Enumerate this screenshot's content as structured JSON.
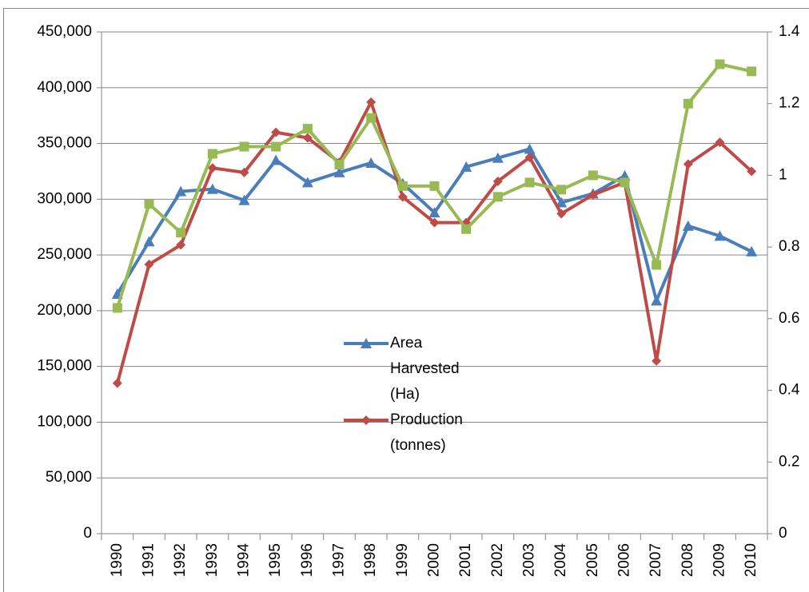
{
  "chart_data": {
    "type": "line",
    "categories": [
      "1990",
      "1991",
      "1992",
      "1993",
      "1994",
      "1995",
      "1996",
      "1997",
      "1998",
      "1999",
      "2000",
      "2001",
      "2002",
      "2003",
      "2004",
      "2005",
      "2006",
      "2007",
      "2008",
      "2009",
      "2010"
    ],
    "series": [
      {
        "name": "Area Harvested (Ha)",
        "color": "#4a7ebb",
        "marker": "triangle",
        "values": [
          215000,
          262000,
          307000,
          309000,
          299000,
          335000,
          315000,
          324000,
          332500,
          314000,
          288000,
          329000,
          337000,
          345000,
          297000,
          305000,
          321000,
          209000,
          276000,
          267000,
          253000
        ]
      },
      {
        "name": "Production (tonnes)",
        "color": "#be4b48",
        "marker": "diamond",
        "values": [
          135000,
          241500,
          259000,
          328000,
          324000,
          360000,
          355000,
          333000,
          387000,
          302000,
          279000,
          279000,
          316000,
          337500,
          287000,
          304000,
          315000,
          155000,
          331500,
          351000,
          325000
        ]
      },
      {
        "color": "#98b954",
        "marker": "square",
        "axis": "y2",
        "values": [
          0.63,
          0.92,
          0.84,
          1.06,
          1.08,
          1.08,
          1.13,
          1.03,
          1.16,
          0.97,
          0.97,
          0.85,
          0.94,
          0.98,
          0.96,
          1.0,
          0.98,
          0.75,
          1.2,
          1.31,
          1.29
        ]
      }
    ],
    "ylim": [
      0,
      450000
    ],
    "yticks": [
      0,
      {
        "value": 50000,
        "label": "50,000"
      },
      {
        "value": 100000,
        "label": "100,000"
      },
      {
        "value": 150000,
        "label": "150,000"
      },
      {
        "value": 200000,
        "label": "200,000"
      },
      {
        "value": 250000,
        "label": "250,000"
      },
      {
        "value": 300000,
        "label": "300,000"
      },
      {
        "value": 350000,
        "label": "350,000"
      },
      {
        "value": 400000,
        "label": "400,000"
      },
      {
        "value": 450000,
        "label": "450,000"
      }
    ],
    "y2lim": [
      0,
      1.4
    ],
    "y2ticks": [
      0,
      0.2,
      0.4,
      0.6,
      0.8,
      1,
      1.2,
      1.4
    ],
    "grid": true
  }
}
